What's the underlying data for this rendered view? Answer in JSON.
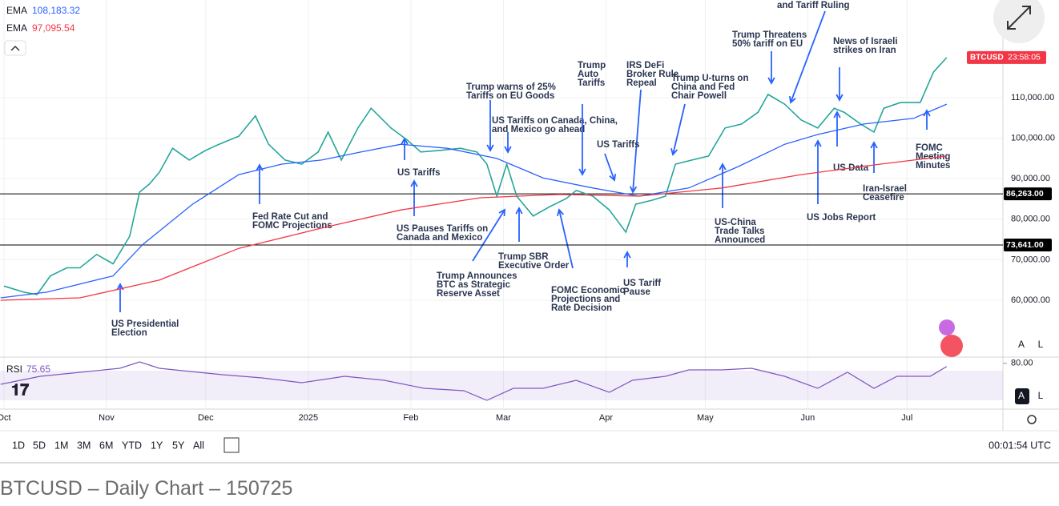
{
  "chart_data": {
    "type": "line",
    "xlim": [
      -1.2,
      302
    ],
    "ylim": [
      46166,
      134110
    ],
    "xticks": [
      {
        "value": 0,
        "label": "Oct"
      },
      {
        "value": 31,
        "label": "Nov"
      },
      {
        "value": 61,
        "label": "Dec"
      },
      {
        "value": 92,
        "label": "2025"
      },
      {
        "value": 123,
        "label": "Feb"
      },
      {
        "value": 151,
        "label": "Mar"
      },
      {
        "value": 182,
        "label": "Apr"
      },
      {
        "value": 212,
        "label": "May"
      },
      {
        "value": 243,
        "label": "Jun"
      },
      {
        "value": 273,
        "label": "Jul"
      }
    ],
    "yticks": [
      {
        "value": 60000,
        "label": "60,000.00"
      },
      {
        "value": 70000,
        "label": "70,000.00"
      },
      {
        "value": 80000,
        "label": "80,000.00"
      },
      {
        "value": 90000,
        "label": "90,000.00"
      },
      {
        "value": 100000,
        "label": "100,000.00"
      },
      {
        "value": 110000,
        "label": "110,000.00"
      }
    ],
    "grid": true,
    "series": [
      {
        "name": "BTCUSD",
        "color": "#26a69a",
        "badge_time": "23:58:05",
        "x": [
          0,
          6,
          10,
          14,
          19,
          23,
          28,
          33,
          38,
          41,
          44,
          47,
          51,
          56,
          61,
          65,
          71,
          76,
          80,
          85,
          90,
          95,
          98,
          102,
          107,
          111,
          117,
          122,
          126,
          132,
          138,
          143,
          146,
          149,
          152,
          155,
          160,
          165,
          170,
          173,
          178,
          183,
          188,
          191,
          196,
          200,
          203,
          208,
          213,
          218,
          223,
          228,
          231,
          236,
          241,
          246,
          251,
          254,
          259,
          263,
          266,
          271,
          277,
          281,
          285
        ],
        "values": [
          63500,
          62000,
          61400,
          66000,
          68000,
          68000,
          71300,
          69000,
          75800,
          86700,
          88700,
          91600,
          97500,
          94600,
          97000,
          98500,
          100500,
          105500,
          98500,
          94600,
          93600,
          96600,
          101500,
          94600,
          102500,
          107400,
          102500,
          99500,
          96600,
          97000,
          97500,
          96600,
          93600,
          85700,
          93600,
          85700,
          80800,
          83100,
          85100,
          87100,
          85700,
          82300,
          76800,
          83700,
          84700,
          85700,
          93600,
          94600,
          95600,
          102500,
          103500,
          106400,
          110800,
          108400,
          104500,
          102500,
          107400,
          106400,
          103500,
          101500,
          107400,
          108800,
          108800,
          116300,
          119900
        ]
      },
      {
        "name": "EMA",
        "color": "#2962ff",
        "last_label": "108,183.32",
        "x": [
          -1,
          13,
          33,
          42,
          57,
          71,
          84,
          96,
          108,
          120,
          134,
          149,
          163,
          178,
          192,
          207,
          222,
          236,
          246,
          260,
          275,
          285
        ],
        "values": [
          60600,
          62000,
          66000,
          73800,
          83700,
          91000,
          93600,
          94600,
          96600,
          98500,
          97500,
          95000,
          90200,
          87700,
          85700,
          87700,
          93000,
          98500,
          100900,
          103500,
          104900,
          108400
        ]
      },
      {
        "name": "EMA",
        "color": "#f23645",
        "last_label": "97,095.54",
        "x": [
          -1,
          23,
          47,
          71,
          96,
          120,
          144,
          168,
          192,
          217,
          241,
          265,
          285
        ],
        "values": [
          60000,
          60600,
          65000,
          72800,
          77800,
          82300,
          85300,
          86100,
          85700,
          87700,
          91000,
          93600,
          95600
        ]
      }
    ],
    "levels": [
      {
        "value": 86263,
        "label": "86,263.00"
      },
      {
        "value": 73641,
        "label": "73,641.00"
      }
    ],
    "rsi": {
      "name": "RSI",
      "color": "#7e57c2",
      "ylim": [
        19.2,
        87.3
      ],
      "yticks": [
        {
          "value": 80,
          "label": "80.00"
        }
      ],
      "band": [
        30,
        70
      ],
      "x": [
        -1,
        11,
        23,
        35,
        41,
        47,
        54,
        66,
        78,
        90,
        103,
        115,
        127,
        139,
        146,
        154,
        163,
        173,
        183,
        190,
        200,
        207,
        217,
        226,
        236,
        246,
        255,
        263,
        270,
        280,
        285
      ],
      "values": [
        51.6,
        62.4,
        67.8,
        73.2,
        81.9,
        73.2,
        70,
        64.6,
        60.3,
        53.8,
        62.4,
        57,
        46.2,
        43,
        30,
        46.2,
        46.2,
        57,
        40.8,
        57,
        62.4,
        71.1,
        71.1,
        73.2,
        62.4,
        46.2,
        67.8,
        46.2,
        62.4,
        62.4,
        75.65
      ]
    },
    "annotations": [
      {
        "lines": [
          "US Presidential",
          "Election"
        ]
      },
      {
        "lines": [
          "Fed Rate Cut and",
          "FOMC Projections"
        ]
      },
      {
        "lines": [
          "US Tariffs"
        ]
      },
      {
        "lines": [
          "US Pauses Tariffs on",
          "Canada and Mexico"
        ]
      },
      {
        "lines": [
          "Trump warns of 25%",
          "Tariffs on EU Goods"
        ]
      },
      {
        "lines": [
          "US Tariffs on Canada, China,",
          "and Mexico go ahead"
        ]
      },
      {
        "lines": [
          "Trump Announces",
          "BTC as Strategic",
          "Reserve Asset"
        ]
      },
      {
        "lines": [
          "Trump SBR",
          "Executive Order"
        ]
      },
      {
        "lines": [
          "FOMC Economic",
          "Projections and",
          "Rate Decision"
        ]
      },
      {
        "lines": [
          "Trump",
          "Auto",
          "Tariffs"
        ]
      },
      {
        "lines": [
          "IRS DeFi",
          "Broker Rule",
          "Repeal"
        ]
      },
      {
        "lines": [
          "US Tariffs"
        ]
      },
      {
        "lines": [
          "US Tariff",
          "Pause"
        ]
      },
      {
        "lines": [
          "Trump U-turns on",
          "China and Fed",
          "Chair Powell"
        ]
      },
      {
        "lines": [
          "US-China",
          "Trade Talks",
          "Announced"
        ]
      },
      {
        "lines": [
          "Trump Threatens",
          "50% tariff on EU"
        ]
      },
      {
        "lines": [
          "and Tariff Ruling"
        ]
      },
      {
        "lines": [
          "News of Israeli",
          "strikes on Iran"
        ]
      },
      {
        "lines": [
          "US Data"
        ]
      },
      {
        "lines": [
          "US Jobs Report"
        ]
      },
      {
        "lines": [
          "Iran-Israel",
          "Ceasefire"
        ]
      },
      {
        "lines": [
          "FOMC",
          "Meeting",
          "Minutes"
        ]
      }
    ],
    "scale_buttons": [
      "A",
      "L"
    ]
  },
  "toolbar": {
    "ranges": [
      "1D",
      "5D",
      "1M",
      "3M",
      "6M",
      "YTD",
      "1Y",
      "5Y",
      "All"
    ],
    "clock": "00:01:54 UTC"
  },
  "caption": "BTCUSD – Daily Chart – 150725"
}
